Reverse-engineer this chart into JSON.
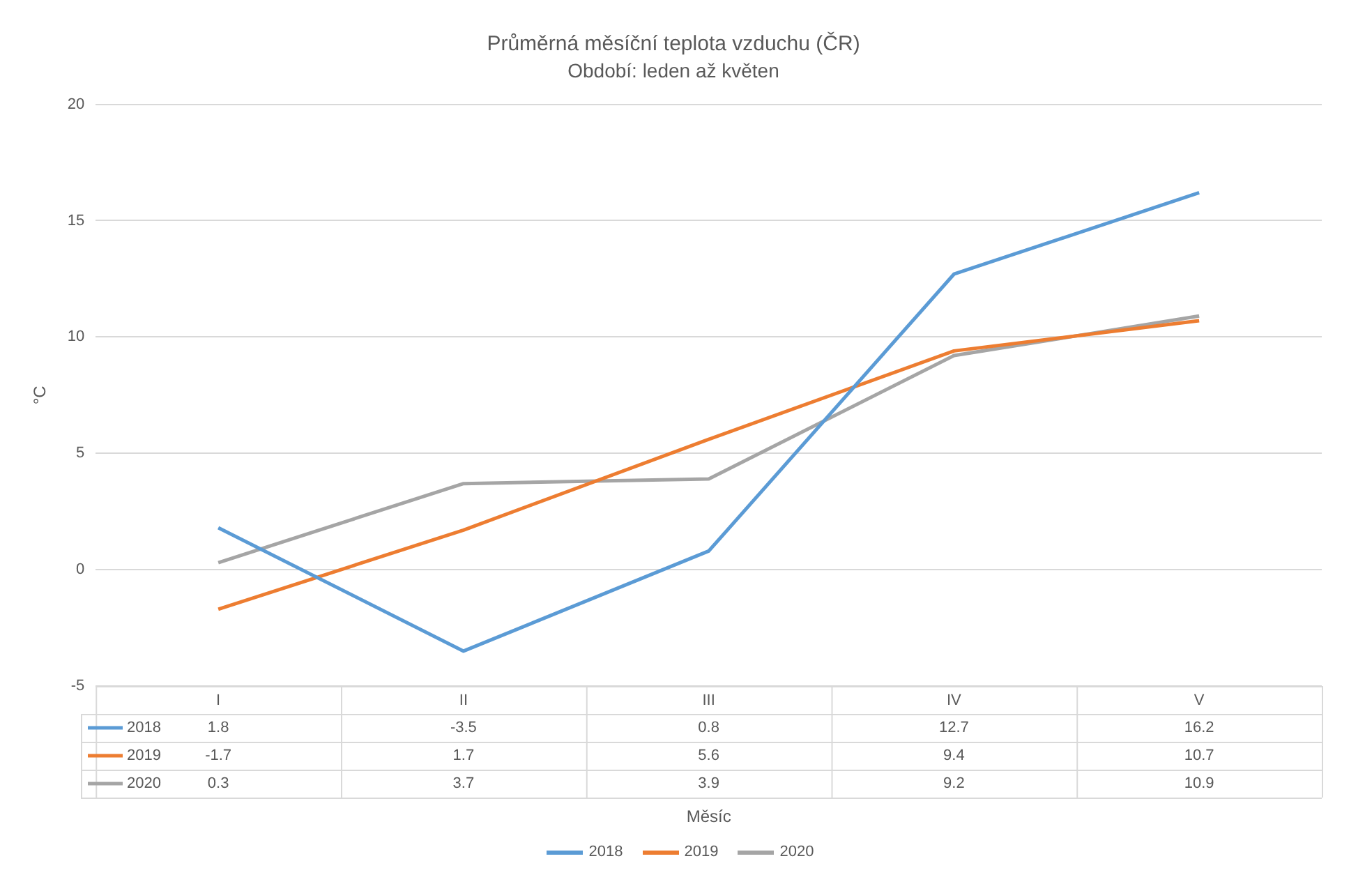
{
  "chart_data": {
    "type": "line",
    "title": "Průměrná měsíční teplota vzduchu (ČR)",
    "subtitle": "Období: leden až květen",
    "ylabel": "°C",
    "annotations": [
      "Měsíc"
    ],
    "categories": [
      "I",
      "II",
      "III",
      "IV",
      "V"
    ],
    "series": [
      {
        "name": "2018",
        "color": "#5b9bd5",
        "values": [
          1.8,
          -3.5,
          0.8,
          12.7,
          16.2
        ]
      },
      {
        "name": "2019",
        "color": "#ed7d31",
        "values": [
          -1.7,
          1.7,
          5.6,
          9.4,
          10.7
        ]
      },
      {
        "name": "2020",
        "color": "#a5a5a5",
        "values": [
          0.3,
          3.7,
          3.9,
          9.2,
          10.9
        ]
      }
    ],
    "ylim": [
      -5,
      20
    ],
    "yticks": [
      -5,
      0,
      5,
      10,
      15,
      20
    ],
    "grid": "y",
    "legend": "bottom",
    "marker": "none",
    "line_style": "solid",
    "data_labels": true
  }
}
